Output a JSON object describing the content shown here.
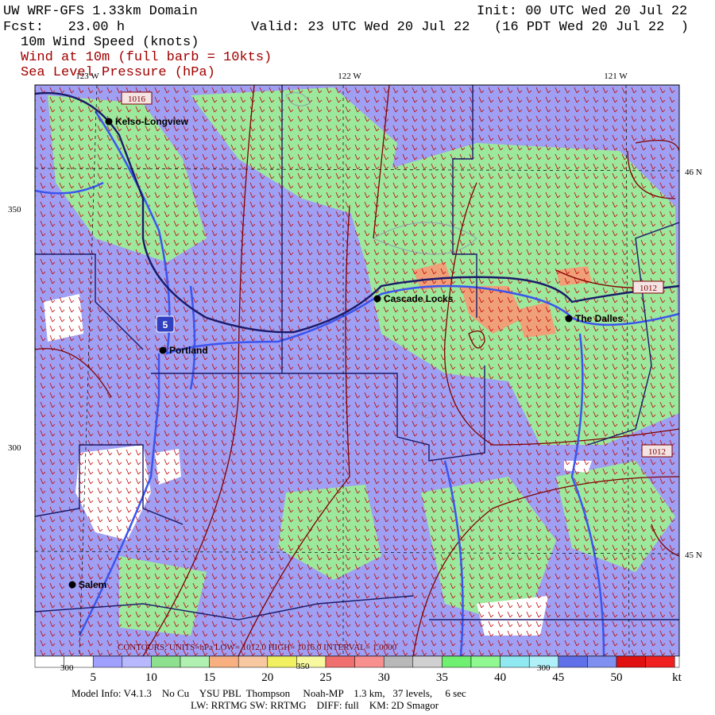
{
  "header": {
    "title": "UW WRF-GFS 1.33km Domain",
    "init": "Init: 00 UTC Wed 20 Jul 22",
    "fcst": "Fcst:   23.00 h",
    "valid": "Valid: 23 UTC Wed 20 Jul 22   (16 PDT Wed 20 Jul 22  )",
    "field": "10m Wind Speed (knots)",
    "wind": "Wind at 10m (full barb = 10kts)",
    "pressure": "Sea Level Pressure (hPa)"
  },
  "map": {
    "lon_labels": [
      "123 W",
      "122 W",
      "121 W"
    ],
    "lat_labels": [
      "46 N",
      "45 N"
    ],
    "y_labels": [
      "350",
      "300"
    ],
    "x_labels": [
      "300",
      "350",
      "300"
    ],
    "cities": [
      "Kelso-Longview",
      "Cascade Locks",
      "Portland",
      "The Dalles",
      "Salem"
    ],
    "isobar_labels": [
      "1016",
      "1012",
      "1012"
    ],
    "highway": "5",
    "contours": "CONTOURS: UNITS=hPa   LOW= 1012.0    HIGH= 1016.0    INTERVAL=   1.0000"
  },
  "colorbar": {
    "labels": [
      5,
      10,
      15,
      20,
      25,
      30,
      35,
      40,
      45,
      50
    ],
    "unit": "kt"
  },
  "footer": {
    "line1": "Model Info: V4.1.3    No Cu    YSU PBL  Thompson     Noah-MP    1.3 km,   37 levels,     6 sec",
    "line2": "LW: RRTMG SW: RRTMG    DIFF: full    KM: 2D Smagor"
  }
}
